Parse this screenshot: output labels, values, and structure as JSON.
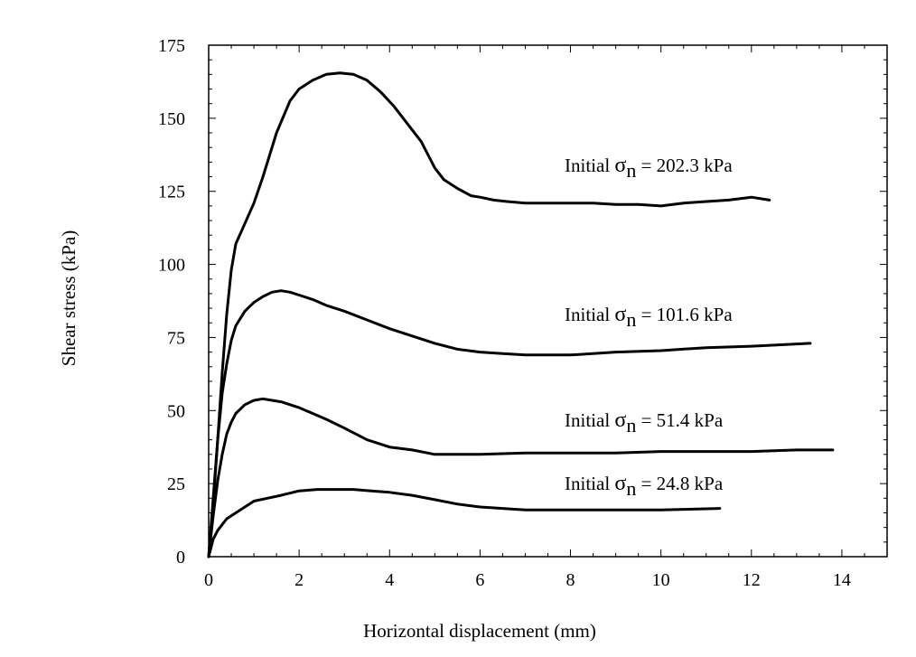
{
  "chart_data": {
    "type": "line",
    "xlabel": "Horizontal displacement (mm)",
    "ylabel": "Shear stress (kPa)",
    "xlim": [
      0,
      15
    ],
    "ylim": [
      0,
      175
    ],
    "xticks": [
      0,
      2,
      4,
      6,
      8,
      10,
      12,
      14
    ],
    "yticks": [
      0,
      25,
      50,
      75,
      100,
      125,
      150,
      175
    ],
    "grid": false,
    "legend": "none",
    "line_color": "#000000",
    "series": [
      {
        "label_prefix": "Initial ",
        "label_symbol": "σ",
        "label_subscript": "n",
        "label_suffix": " = 202.3 kPa",
        "x": [
          0,
          0.1,
          0.2,
          0.3,
          0.4,
          0.5,
          0.6,
          0.8,
          1.0,
          1.2,
          1.5,
          1.8,
          2.0,
          2.3,
          2.6,
          2.9,
          3.2,
          3.5,
          3.8,
          4.1,
          4.4,
          4.7,
          5.0,
          5.2,
          5.5,
          5.8,
          6.0,
          6.3,
          6.6,
          7.0,
          7.5,
          8.0,
          8.5,
          9.0,
          9.5,
          10.0,
          10.5,
          11.0,
          11.5,
          12.0,
          12.4
        ],
        "y": [
          0,
          18,
          40,
          63,
          83,
          98,
          107,
          114,
          121,
          130,
          145,
          156,
          160,
          163,
          165,
          165.5,
          165,
          163,
          159,
          154,
          148,
          142,
          133,
          129,
          126,
          123.5,
          123,
          122,
          121.5,
          121,
          121,
          121,
          121,
          120.5,
          120.5,
          120,
          121,
          121.5,
          122,
          123,
          122
        ]
      },
      {
        "label_prefix": "Initial ",
        "label_symbol": "σ",
        "label_subscript": "n",
        "label_suffix": " = 101.6 kPa",
        "x": [
          0,
          0.1,
          0.2,
          0.3,
          0.4,
          0.5,
          0.6,
          0.8,
          1.0,
          1.2,
          1.4,
          1.6,
          1.8,
          2.0,
          2.3,
          2.6,
          3.0,
          3.5,
          4.0,
          4.5,
          5.0,
          5.5,
          6.0,
          6.5,
          7.0,
          7.5,
          8.0,
          9.0,
          10.0,
          11.0,
          12.0,
          13.3
        ],
        "y": [
          0,
          20,
          40,
          56,
          66,
          74,
          79,
          84,
          87,
          89,
          90.5,
          91,
          90.5,
          89.5,
          88,
          86,
          84,
          81,
          78,
          75.5,
          73,
          71,
          70,
          69.5,
          69,
          69,
          69,
          70,
          70.5,
          71.5,
          72,
          73
        ]
      },
      {
        "label_prefix": "Initial ",
        "label_symbol": "σ",
        "label_subscript": "n",
        "label_suffix": " = 51.4 kPa",
        "x": [
          0,
          0.1,
          0.2,
          0.3,
          0.4,
          0.5,
          0.6,
          0.8,
          1.0,
          1.2,
          1.4,
          1.6,
          1.8,
          2.0,
          2.3,
          2.6,
          3.0,
          3.5,
          4.0,
          4.5,
          5.0,
          5.5,
          6.0,
          7.0,
          8.0,
          9.0,
          10.0,
          11.0,
          12.0,
          13.0,
          13.8
        ],
        "y": [
          0,
          14,
          26,
          35,
          42,
          46,
          49,
          52,
          53.5,
          54,
          53.5,
          53,
          52,
          51,
          49,
          47,
          44,
          40,
          37.5,
          36.5,
          35,
          35,
          35,
          35.5,
          35.5,
          35.5,
          36,
          36,
          36,
          36.5,
          36.5
        ]
      },
      {
        "label_prefix": "Initial ",
        "label_symbol": "σ",
        "label_subscript": "n",
        "label_suffix": " = 24.8 kPa",
        "x": [
          0,
          0.1,
          0.2,
          0.3,
          0.4,
          0.6,
          0.8,
          1.0,
          1.3,
          1.6,
          2.0,
          2.4,
          2.8,
          3.2,
          3.6,
          4.0,
          4.5,
          5.0,
          5.5,
          6.0,
          7.0,
          8.0,
          9.0,
          10.0,
          11.3
        ],
        "y": [
          0,
          6,
          9,
          11,
          13,
          15,
          17,
          19,
          20,
          21,
          22.5,
          23,
          23,
          23,
          22.5,
          22,
          21,
          19.5,
          18,
          17,
          16,
          16,
          16,
          16,
          16.5
        ]
      }
    ]
  }
}
